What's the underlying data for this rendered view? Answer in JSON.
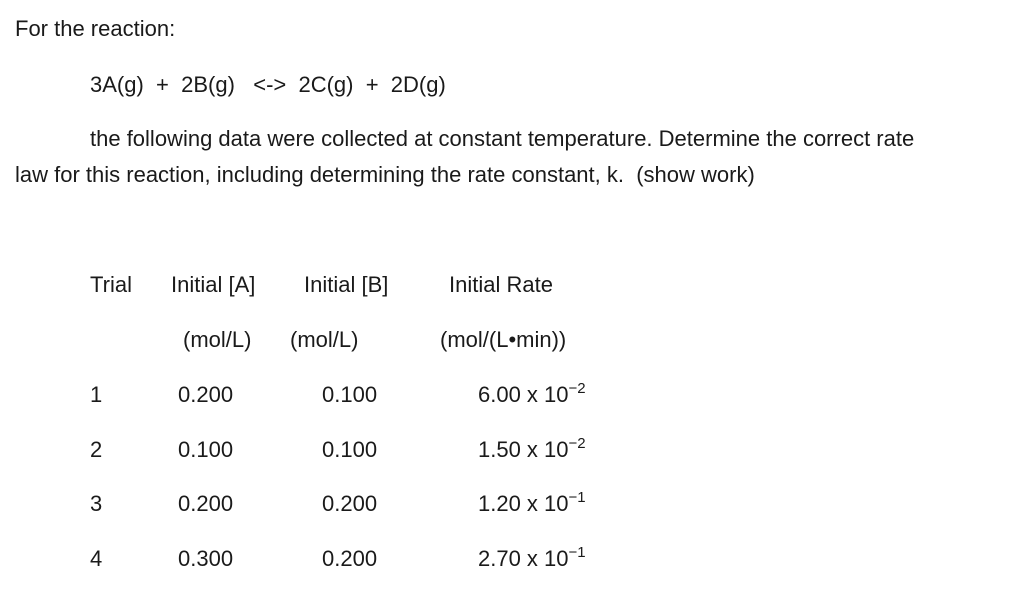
{
  "text": {
    "intro": "For the reaction:",
    "reaction": "3A(g)  +  2B(g)   <->  2C(g)  +  2D(g)",
    "instruction_line1": "the following data were collected at constant temperature. Determine the correct rate",
    "instruction_line2": "law for this reaction, including determining the rate constant, k.  (show work)"
  },
  "table": {
    "headers": {
      "trial": "Trial",
      "a": "Initial [A]",
      "b": "Initial [B]",
      "rate": "Initial Rate"
    },
    "units": {
      "a": "(mol/L)",
      "b": "(mol/L)",
      "rate": "(mol/(L•min))"
    },
    "rows": [
      {
        "trial": "1",
        "a": "0.200",
        "b": "0.100",
        "rate_mantissa": "6.00 x 10",
        "rate_exp": "−2"
      },
      {
        "trial": "2",
        "a": "0.100",
        "b": "0.100",
        "rate_mantissa": "1.50 x 10",
        "rate_exp": "−2"
      },
      {
        "trial": "3",
        "a": "0.200",
        "b": "0.200",
        "rate_mantissa": "1.20 x 10",
        "rate_exp": "−1"
      },
      {
        "trial": "4",
        "a": "0.300",
        "b": "0.200",
        "rate_mantissa": "2.70 x 10",
        "rate_exp": "−1"
      }
    ]
  }
}
